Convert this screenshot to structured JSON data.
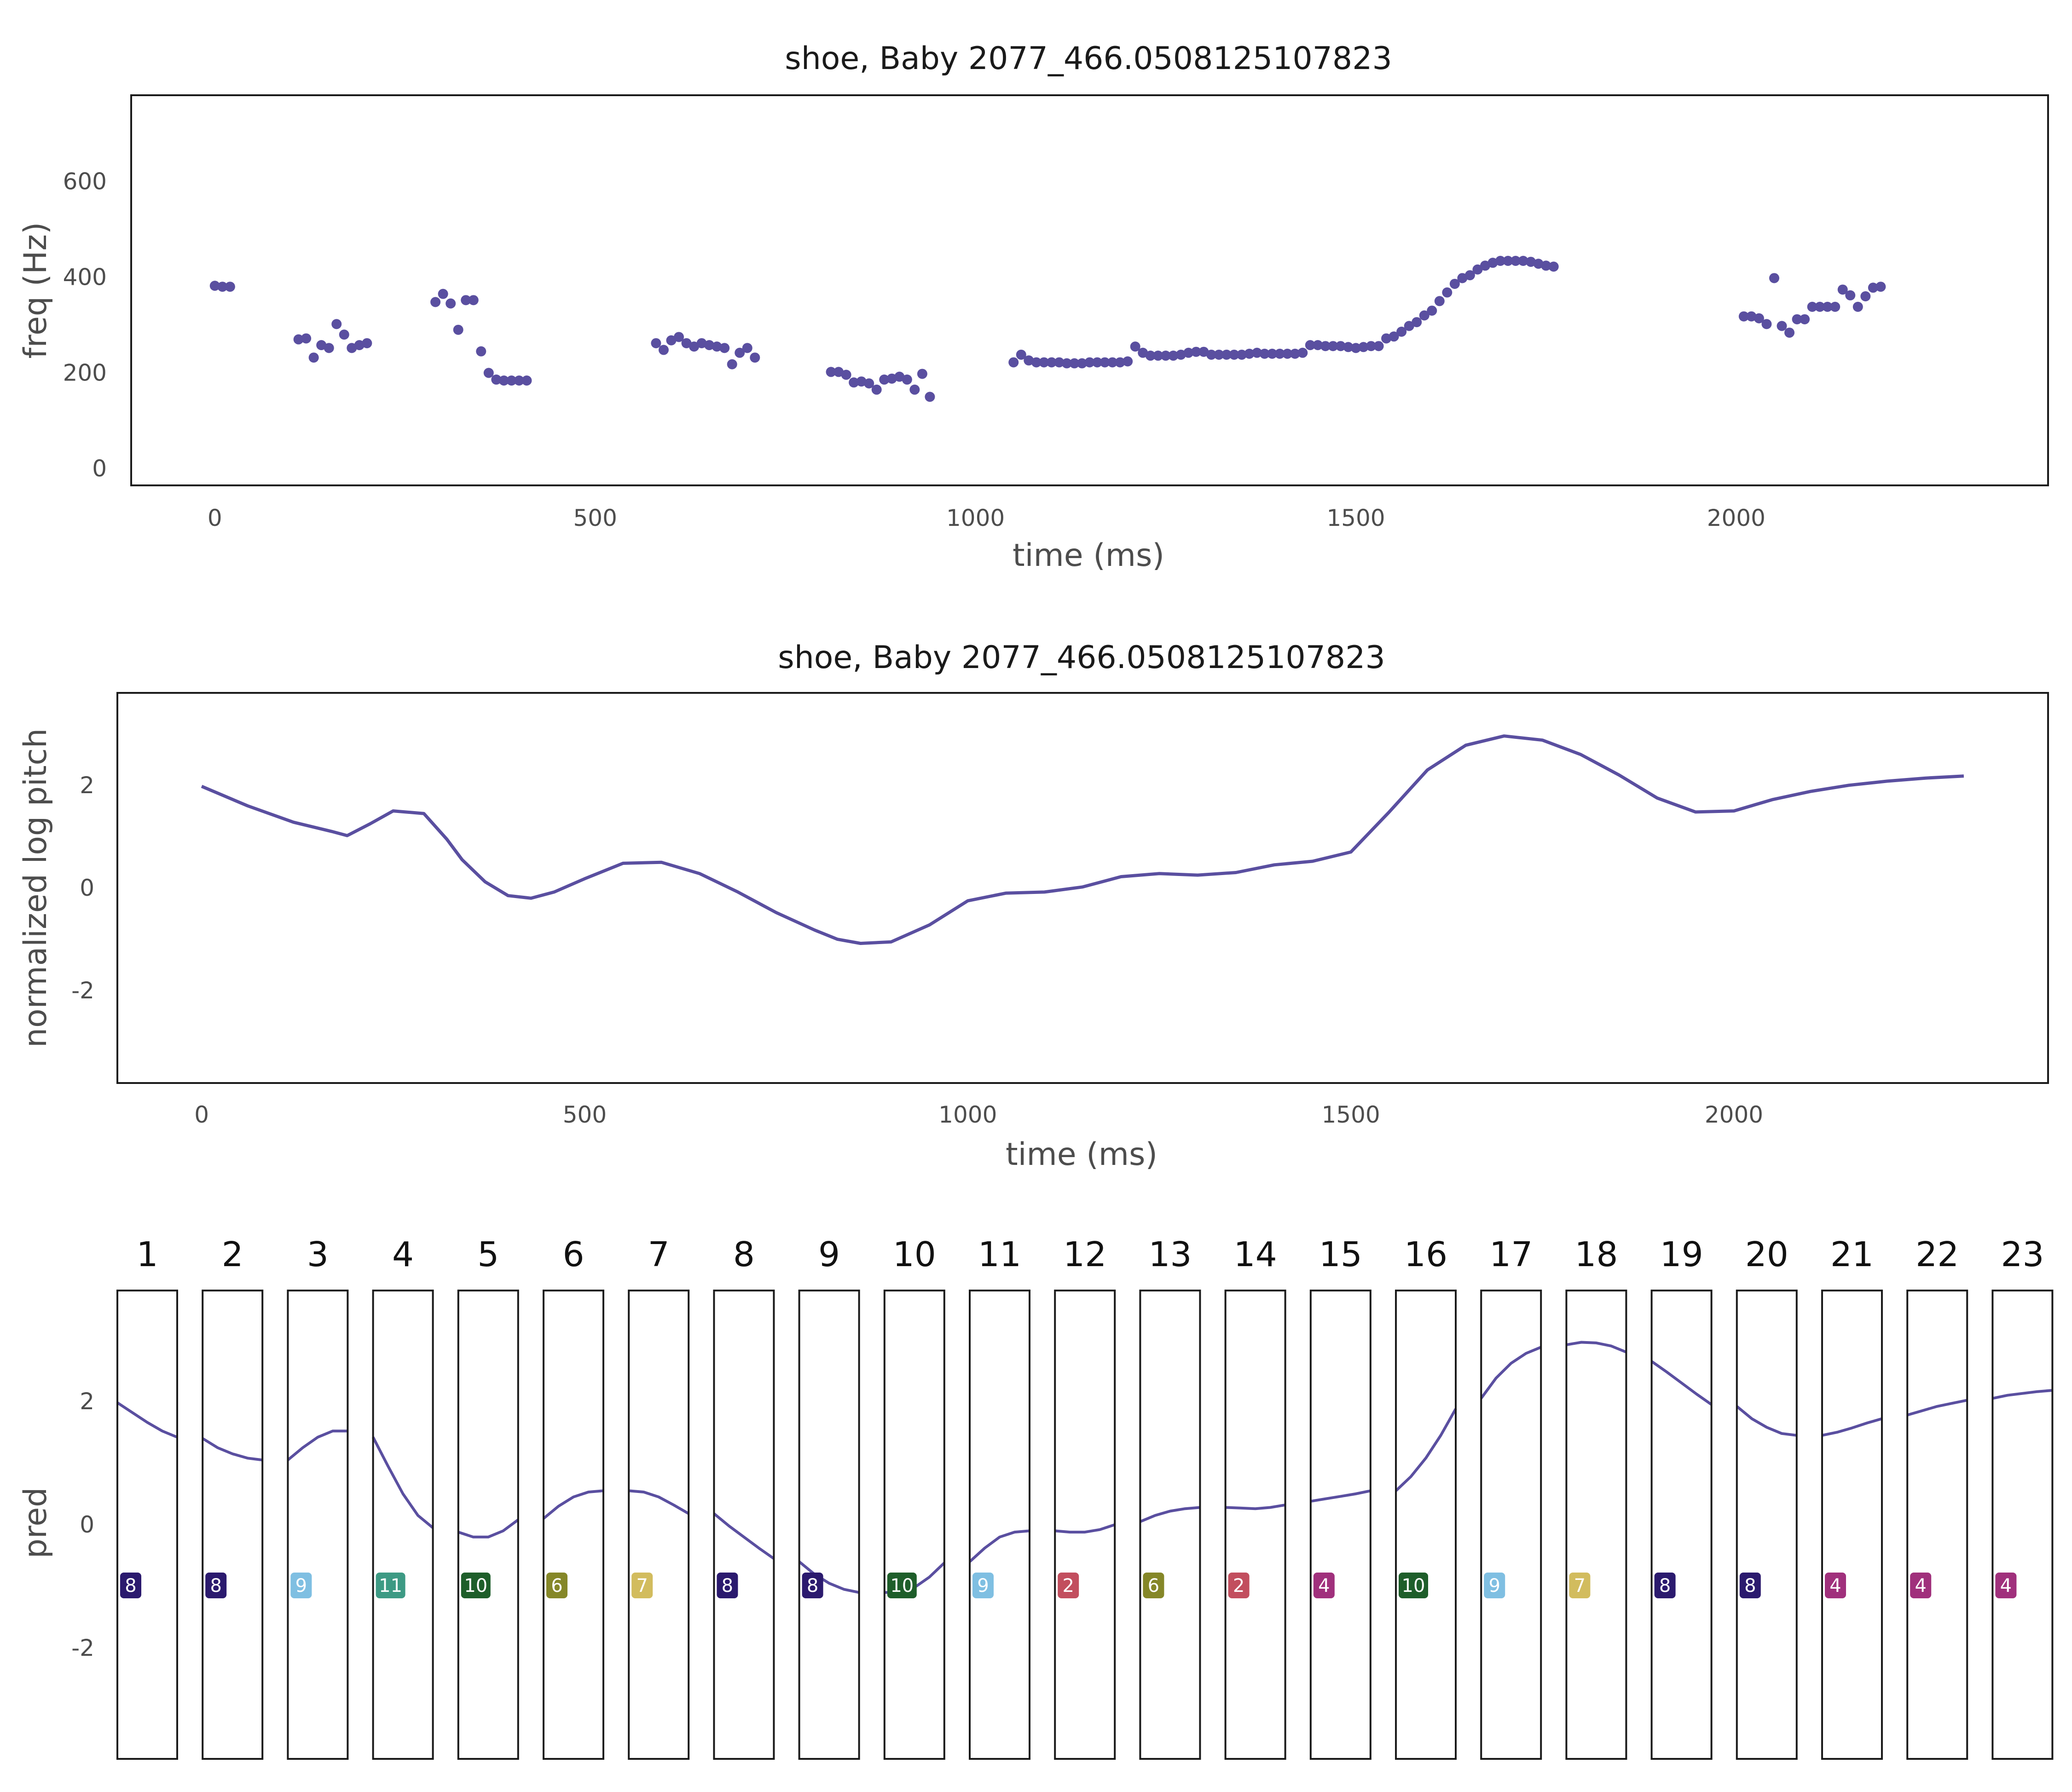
{
  "chart_data": [
    {
      "type": "scatter",
      "title": "shoe, Baby 2077_466.0508125107823",
      "xlabel": "time (ms)",
      "ylabel": "freq (Hz)",
      "xlim": [
        -110,
        2410
      ],
      "ylim": [
        -35,
        780
      ],
      "xticks": [
        0,
        500,
        1000,
        1500,
        2000
      ],
      "yticks": [
        0,
        200,
        400,
        600
      ],
      "grid": false,
      "color": "#5a4fa0",
      "points": [
        [
          0,
          382
        ],
        [
          10,
          380
        ],
        [
          20,
          380
        ],
        [
          110,
          270
        ],
        [
          120,
          272
        ],
        [
          130,
          232
        ],
        [
          140,
          258
        ],
        [
          150,
          252
        ],
        [
          160,
          302
        ],
        [
          170,
          280
        ],
        [
          180,
          252
        ],
        [
          190,
          258
        ],
        [
          200,
          262
        ],
        [
          290,
          348
        ],
        [
          300,
          365
        ],
        [
          310,
          345
        ],
        [
          320,
          290
        ],
        [
          330,
          352
        ],
        [
          340,
          352
        ],
        [
          350,
          245
        ],
        [
          360,
          200
        ],
        [
          370,
          186
        ],
        [
          380,
          184
        ],
        [
          390,
          184
        ],
        [
          400,
          184
        ],
        [
          410,
          184
        ],
        [
          580,
          262
        ],
        [
          590,
          248
        ],
        [
          600,
          268
        ],
        [
          610,
          275
        ],
        [
          620,
          262
        ],
        [
          630,
          255
        ],
        [
          640,
          262
        ],
        [
          650,
          258
        ],
        [
          660,
          255
        ],
        [
          670,
          252
        ],
        [
          680,
          218
        ],
        [
          690,
          242
        ],
        [
          700,
          252
        ],
        [
          710,
          232
        ],
        [
          810,
          202
        ],
        [
          820,
          202
        ],
        [
          830,
          196
        ],
        [
          840,
          180
        ],
        [
          850,
          182
        ],
        [
          860,
          178
        ],
        [
          870,
          165
        ],
        [
          880,
          186
        ],
        [
          890,
          188
        ],
        [
          900,
          192
        ],
        [
          910,
          186
        ],
        [
          920,
          165
        ],
        [
          930,
          198
        ],
        [
          940,
          150
        ],
        [
          1050,
          222
        ],
        [
          1060,
          238
        ],
        [
          1070,
          226
        ],
        [
          1080,
          222
        ],
        [
          1090,
          222
        ],
        [
          1100,
          222
        ],
        [
          1110,
          222
        ],
        [
          1120,
          220
        ],
        [
          1130,
          220
        ],
        [
          1140,
          220
        ],
        [
          1150,
          222
        ],
        [
          1160,
          222
        ],
        [
          1170,
          222
        ],
        [
          1180,
          222
        ],
        [
          1190,
          222
        ],
        [
          1200,
          224
        ],
        [
          1210,
          255
        ],
        [
          1220,
          242
        ],
        [
          1230,
          236
        ],
        [
          1240,
          236
        ],
        [
          1250,
          236
        ],
        [
          1260,
          236
        ],
        [
          1270,
          238
        ],
        [
          1280,
          242
        ],
        [
          1290,
          244
        ],
        [
          1300,
          244
        ],
        [
          1310,
          238
        ],
        [
          1320,
          238
        ],
        [
          1330,
          238
        ],
        [
          1340,
          238
        ],
        [
          1350,
          238
        ],
        [
          1360,
          240
        ],
        [
          1370,
          242
        ],
        [
          1380,
          240
        ],
        [
          1390,
          240
        ],
        [
          1400,
          240
        ],
        [
          1410,
          240
        ],
        [
          1420,
          240
        ],
        [
          1430,
          242
        ],
        [
          1440,
          258
        ],
        [
          1450,
          258
        ],
        [
          1460,
          256
        ],
        [
          1470,
          256
        ],
        [
          1480,
          256
        ],
        [
          1490,
          254
        ],
        [
          1500,
          252
        ],
        [
          1510,
          254
        ],
        [
          1520,
          256
        ],
        [
          1530,
          256
        ],
        [
          1540,
          272
        ],
        [
          1550,
          276
        ],
        [
          1560,
          286
        ],
        [
          1570,
          298
        ],
        [
          1580,
          306
        ],
        [
          1590,
          320
        ],
        [
          1600,
          330
        ],
        [
          1610,
          350
        ],
        [
          1620,
          368
        ],
        [
          1630,
          386
        ],
        [
          1640,
          398
        ],
        [
          1650,
          404
        ],
        [
          1660,
          416
        ],
        [
          1670,
          424
        ],
        [
          1680,
          430
        ],
        [
          1690,
          434
        ],
        [
          1700,
          434
        ],
        [
          1710,
          434
        ],
        [
          1720,
          434
        ],
        [
          1730,
          432
        ],
        [
          1740,
          428
        ],
        [
          1750,
          424
        ],
        [
          1760,
          422
        ],
        [
          2010,
          318
        ],
        [
          2020,
          318
        ],
        [
          2030,
          314
        ],
        [
          2040,
          302
        ],
        [
          2050,
          398
        ],
        [
          2060,
          298
        ],
        [
          2070,
          284
        ],
        [
          2080,
          312
        ],
        [
          2090,
          312
        ],
        [
          2100,
          338
        ],
        [
          2110,
          338
        ],
        [
          2120,
          338
        ],
        [
          2130,
          338
        ],
        [
          2140,
          374
        ],
        [
          2150,
          362
        ],
        [
          2160,
          338
        ],
        [
          2170,
          360
        ],
        [
          2180,
          378
        ],
        [
          2190,
          380
        ]
      ]
    },
    {
      "type": "line",
      "title": "shoe, Baby 2077_466.0508125107823",
      "xlabel": "time (ms)",
      "ylabel": "normalized log pitch",
      "xlim": [
        -110,
        2410
      ],
      "ylim": [
        -3.8,
        3.8
      ],
      "xticks": [
        0,
        500,
        1000,
        1500,
        2000
      ],
      "yticks": [
        -2,
        0,
        2
      ],
      "grid": false,
      "color": "#5a4fa0",
      "x": [
        0,
        60,
        120,
        170,
        190,
        220,
        250,
        290,
        320,
        340,
        370,
        400,
        430,
        460,
        500,
        550,
        600,
        650,
        700,
        750,
        800,
        830,
        860,
        900,
        950,
        1000,
        1050,
        1100,
        1150,
        1200,
        1250,
        1300,
        1350,
        1400,
        1450,
        1500,
        1550,
        1600,
        1650,
        1700,
        1750,
        1800,
        1850,
        1900,
        1950,
        2000,
        2050,
        2100,
        2150,
        2200,
        2250,
        2300
      ],
      "y": [
        1.98,
        1.6,
        1.28,
        1.1,
        1.02,
        1.25,
        1.5,
        1.45,
        0.95,
        0.55,
        0.12,
        -0.15,
        -0.2,
        -0.08,
        0.18,
        0.48,
        0.5,
        0.28,
        -0.08,
        -0.48,
        -0.82,
        -1.0,
        -1.08,
        -1.05,
        -0.72,
        -0.25,
        -0.1,
        -0.08,
        0.02,
        0.22,
        0.28,
        0.25,
        0.3,
        0.45,
        0.52,
        0.7,
        1.48,
        2.3,
        2.78,
        2.96,
        2.88,
        2.6,
        2.2,
        1.75,
        1.48,
        1.5,
        1.72,
        1.88,
        2.0,
        2.08,
        2.14,
        2.18
      ]
    },
    {
      "type": "line",
      "ylabel": "pred",
      "ylim": [
        -3.8,
        3.8
      ],
      "yticks": [
        -2,
        0,
        2
      ],
      "grid": false,
      "color": "#5a4fa0",
      "segments": [
        {
          "label": "1",
          "cluster": "8",
          "badge_color": "#2b1a6e",
          "values": [
            1.98,
            1.82,
            1.66,
            1.52,
            1.42
          ]
        },
        {
          "label": "2",
          "cluster": "8",
          "badge_color": "#2b1a6e",
          "values": [
            1.4,
            1.25,
            1.15,
            1.08,
            1.05
          ]
        },
        {
          "label": "3",
          "cluster": "9",
          "badge_color": "#7fbfe2",
          "values": [
            1.05,
            1.25,
            1.42,
            1.52,
            1.52
          ]
        },
        {
          "label": "4",
          "cluster": "11",
          "badge_color": "#3d9a84",
          "values": [
            1.42,
            0.95,
            0.5,
            0.15,
            -0.05
          ]
        },
        {
          "label": "5",
          "cluster": "10",
          "badge_color": "#1e5e2a",
          "values": [
            -0.12,
            -0.2,
            -0.2,
            -0.1,
            0.08
          ]
        },
        {
          "label": "6",
          "cluster": "6",
          "badge_color": "#858728",
          "values": [
            0.1,
            0.3,
            0.45,
            0.53,
            0.55
          ]
        },
        {
          "label": "7",
          "cluster": "7",
          "badge_color": "#d2bc5e",
          "values": [
            0.55,
            0.53,
            0.45,
            0.32,
            0.18
          ]
        },
        {
          "label": "8",
          "cluster": "8",
          "badge_color": "#2b1a6e",
          "values": [
            0.18,
            -0.02,
            -0.2,
            -0.38,
            -0.55
          ]
        },
        {
          "label": "9",
          "cluster": "8",
          "badge_color": "#2b1a6e",
          "values": [
            -0.6,
            -0.8,
            -0.95,
            -1.05,
            -1.1
          ]
        },
        {
          "label": "10",
          "cluster": "10",
          "badge_color": "#1e5e2a",
          "values": [
            -1.1,
            -1.1,
            -1.02,
            -0.85,
            -0.62
          ]
        },
        {
          "label": "11",
          "cluster": "9",
          "badge_color": "#7fbfe2",
          "values": [
            -0.6,
            -0.38,
            -0.2,
            -0.12,
            -0.1
          ]
        },
        {
          "label": "12",
          "cluster": "2",
          "badge_color": "#c24e5e",
          "values": [
            -0.1,
            -0.12,
            -0.12,
            -0.08,
            0.0
          ]
        },
        {
          "label": "13",
          "cluster": "6",
          "badge_color": "#858728",
          "values": [
            0.05,
            0.15,
            0.22,
            0.26,
            0.28
          ]
        },
        {
          "label": "14",
          "cluster": "2",
          "badge_color": "#c24e5e",
          "values": [
            0.28,
            0.27,
            0.26,
            0.28,
            0.32
          ]
        },
        {
          "label": "15",
          "cluster": "4",
          "badge_color": "#a0307c",
          "values": [
            0.38,
            0.42,
            0.46,
            0.5,
            0.55
          ]
        },
        {
          "label": "16",
          "cluster": "10",
          "badge_color": "#1e5e2a",
          "values": [
            0.55,
            0.78,
            1.08,
            1.45,
            1.88
          ]
        },
        {
          "label": "17",
          "cluster": "9",
          "badge_color": "#7fbfe2",
          "values": [
            2.05,
            2.38,
            2.62,
            2.78,
            2.88
          ]
        },
        {
          "label": "18",
          "cluster": "7",
          "badge_color": "#d2bc5e",
          "values": [
            2.92,
            2.96,
            2.95,
            2.9,
            2.8
          ]
        },
        {
          "label": "19",
          "cluster": "8",
          "badge_color": "#2b1a6e",
          "values": [
            2.65,
            2.48,
            2.3,
            2.12,
            1.95
          ]
        },
        {
          "label": "20",
          "cluster": "8",
          "badge_color": "#2b1a6e",
          "values": [
            1.92,
            1.72,
            1.58,
            1.48,
            1.45
          ]
        },
        {
          "label": "21",
          "cluster": "4",
          "badge_color": "#a0307c",
          "values": [
            1.45,
            1.5,
            1.57,
            1.65,
            1.72
          ]
        },
        {
          "label": "22",
          "cluster": "4",
          "badge_color": "#a0307c",
          "values": [
            1.78,
            1.85,
            1.92,
            1.97,
            2.02
          ]
        },
        {
          "label": "23",
          "cluster": "4",
          "badge_color": "#a0307c",
          "values": [
            2.05,
            2.1,
            2.13,
            2.16,
            2.18
          ]
        }
      ]
    }
  ]
}
